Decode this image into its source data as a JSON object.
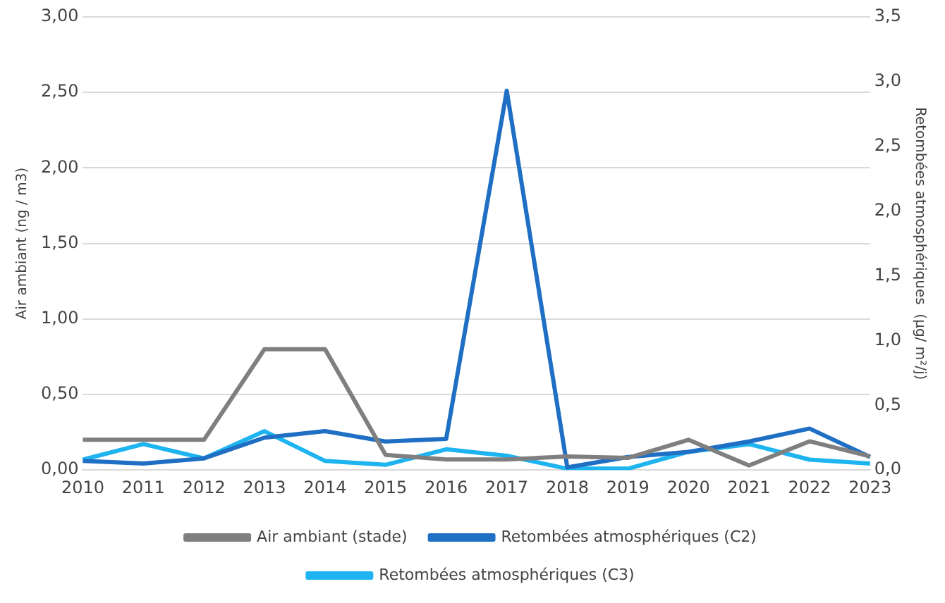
{
  "chart_data": {
    "type": "line",
    "ylabel": "Air ambiant (ng / m3)",
    "y2label": "Retombées atmosphériques  (µg/ m²/j)",
    "categories": [
      "2010",
      "2011",
      "2012",
      "2013",
      "2014",
      "2015",
      "2016",
      "2017",
      "2018",
      "2019",
      "2020",
      "2021",
      "2022",
      "2023"
    ],
    "series": [
      {
        "name": "Air ambiant (stade)",
        "color": "#7f7f7f",
        "values": [
          0.2,
          0.2,
          0.2,
          0.8,
          0.8,
          0.1,
          0.07,
          0.07,
          0.09,
          0.08,
          0.2,
          0.03,
          0.19,
          0.09
        ]
      },
      {
        "name": "Retombées atmosphériques (C2)",
        "color": "#1f6fc5",
        "axis": "y2",
        "values": [
          0.07,
          0.05,
          0.09,
          0.25,
          0.3,
          0.22,
          0.24,
          2.93,
          0.02,
          0.1,
          0.14,
          0.22,
          0.32,
          0.1
        ]
      },
      {
        "name": "Retombées atmosphériques (C3)",
        "color": "#1eb4f0",
        "axis": "y2",
        "values": [
          0.08,
          0.2,
          0.09,
          0.3,
          0.07,
          0.04,
          0.16,
          0.11,
          0.01,
          0.01,
          0.14,
          0.2,
          0.08,
          0.05
        ]
      }
    ],
    "ylim": [
      0,
      3
    ],
    "yticks": [
      {
        "value": 0,
        "label": "0,00"
      },
      {
        "value": 0.5,
        "label": "0,50"
      },
      {
        "value": 1,
        "label": "1,00"
      },
      {
        "value": 1.5,
        "label": "1,50"
      },
      {
        "value": 2,
        "label": "2,00"
      },
      {
        "value": 2.5,
        "label": "2,50"
      },
      {
        "value": 3,
        "label": "3,00"
      }
    ],
    "y2lim": [
      0,
      3.5
    ],
    "y2ticks": [
      {
        "value": 0,
        "label": "0,0"
      },
      {
        "value": 0.5,
        "label": "0,5"
      },
      {
        "value": 1,
        "label": "1,0"
      },
      {
        "value": 1.5,
        "label": "1,5"
      },
      {
        "value": 2,
        "label": "2,0"
      },
      {
        "value": 2.5,
        "label": "2,5"
      },
      {
        "value": 3,
        "label": "3,0"
      },
      {
        "value": 3.5,
        "label": "3,5"
      }
    ],
    "grid": "y",
    "legend": "bottom",
    "marker": "none",
    "line_style": "solid"
  }
}
